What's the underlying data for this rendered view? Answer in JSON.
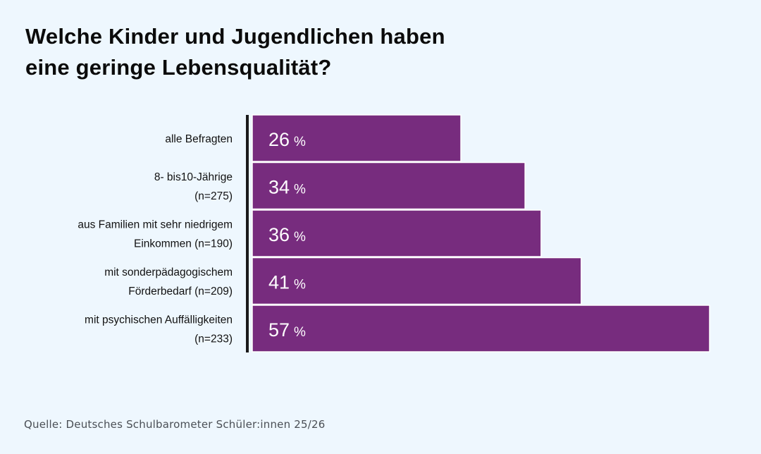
{
  "title_lines": [
    "Welche Kinder und Jugendlichen haben",
    "eine geringe Lebensqualität?"
  ],
  "source": "Quelle: Deutsches Schulbarometer Schüler:innen 25/26",
  "colors": {
    "bar": "#772c7e",
    "bar_text": "#ffffff",
    "axis": "#1a1a1a",
    "label": "#111111",
    "background": "#eef7fe"
  },
  "chart_data": {
    "type": "bar",
    "orientation": "horizontal",
    "categories": [
      [
        "alle Befragten"
      ],
      [
        "8- bis10-Jährige",
        "(n=275)"
      ],
      [
        "aus Familien mit sehr niedrigem",
        "Einkommen (n=190)"
      ],
      [
        "mit sonderpädagogischem",
        "Förderbedarf (n=209)"
      ],
      [
        "mit psychischen Auffälligkeiten",
        "(n=233)"
      ]
    ],
    "values": [
      26,
      34,
      36,
      41,
      57
    ],
    "unit": "%",
    "xlim": [
      0,
      57
    ],
    "grid": false,
    "legend": "none"
  }
}
